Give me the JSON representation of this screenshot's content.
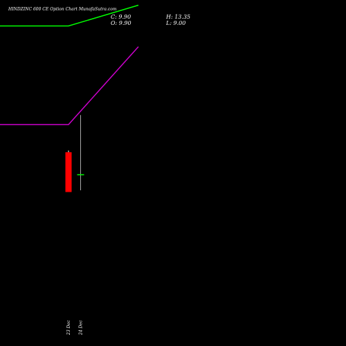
{
  "header": {
    "title": "HINDZINC 600  CE Option  Chart MunafaSutra.com",
    "close": "C: 9.90",
    "open": "O: 9.90",
    "high": "H: 13.35",
    "low": "L: 9.00"
  },
  "chart_data": {
    "type": "candlestick",
    "price_range": [
      0,
      20
    ],
    "candles": [
      {
        "label": "23 Dec",
        "open": 11.2,
        "high": 11.3,
        "low": 8.9,
        "close": 8.9,
        "direction": "down",
        "color": "#ff0000"
      },
      {
        "label": "24 Dec",
        "open": 9.9,
        "high": 13.35,
        "low": 9.0,
        "close": 9.9,
        "direction": "flat",
        "color": "#00ff00"
      }
    ],
    "lines": [
      {
        "color": "#00ff00",
        "points": [
          [
            -1,
            18.5
          ],
          [
            0,
            18.5
          ],
          [
            1,
            19.7
          ]
        ]
      },
      {
        "color": "#cc00cc",
        "points": [
          [
            -1,
            12.8
          ],
          [
            0,
            12.8
          ],
          [
            1,
            17.3
          ]
        ]
      }
    ]
  }
}
